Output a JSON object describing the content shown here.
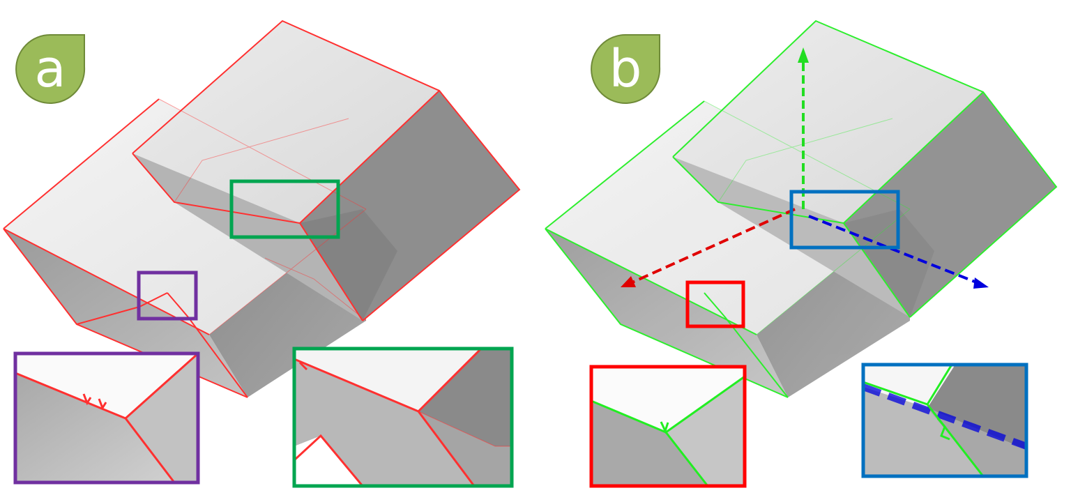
{
  "panels": [
    {
      "label": "a",
      "edge_color": "#ff3030",
      "badge_color": "#9bbb59",
      "badge_stroke": "#6f8a38",
      "insets": [
        {
          "frame_color": "#7030a0"
        },
        {
          "frame_color": "#00a550"
        }
      ]
    },
    {
      "label": "b",
      "edge_color": "#22ee22",
      "badge_color": "#9bbb59",
      "badge_stroke": "#6f8a38",
      "insets": [
        {
          "frame_color": "#ff0000"
        },
        {
          "frame_color": "#0070c0"
        }
      ]
    }
  ],
  "axes": {
    "x_color": "#e00000",
    "y_color": "#22dd22",
    "z_color": "#0000dd"
  }
}
